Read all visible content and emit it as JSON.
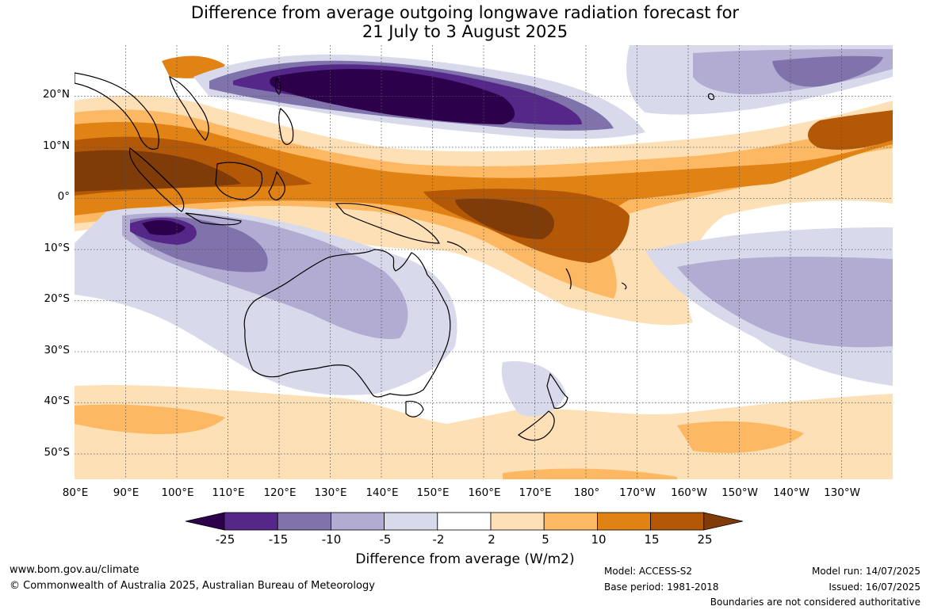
{
  "title": {
    "line1": "Difference from average outgoing longwave radiation forecast for",
    "line2": "21 July to 3 August 2025"
  },
  "lat_labels": [
    "20°N",
    "10°N",
    "0°",
    "10°S",
    "20°S",
    "30°S",
    "40°S",
    "50°S"
  ],
  "lon_labels": [
    "80°E",
    "90°E",
    "100°E",
    "110°E",
    "120°E",
    "130°E",
    "140°E",
    "150°E",
    "160°E",
    "170°E",
    "180°",
    "170°W",
    "160°W",
    "150°W",
    "140°W",
    "130°W"
  ],
  "colorbar": {
    "ticks": [
      "-25",
      "-15",
      "-10",
      "-5",
      "-2",
      "2",
      "5",
      "10",
      "15",
      "25"
    ],
    "colors": [
      "#2d004b",
      "#542788",
      "#8073ac",
      "#b2abd2",
      "#d8daeb",
      "#ffffff",
      "#fee0b6",
      "#fdb863",
      "#e08214",
      "#b35806",
      "#7f3b08"
    ],
    "title": "Difference from average (W/m2)"
  },
  "footer": {
    "website": "www.bom.gov.au/climate",
    "copyright": "© Commonwealth of Australia 2025, Australian Bureau of Meteorology",
    "model": "Model: ACCESS-S2",
    "base_period": "Base period: 1981-2018",
    "model_run": "Model run: 14/07/2025",
    "issued": "Issued: 16/07/2025",
    "disclaimer": "Boundaries are not considered authoritative"
  }
}
